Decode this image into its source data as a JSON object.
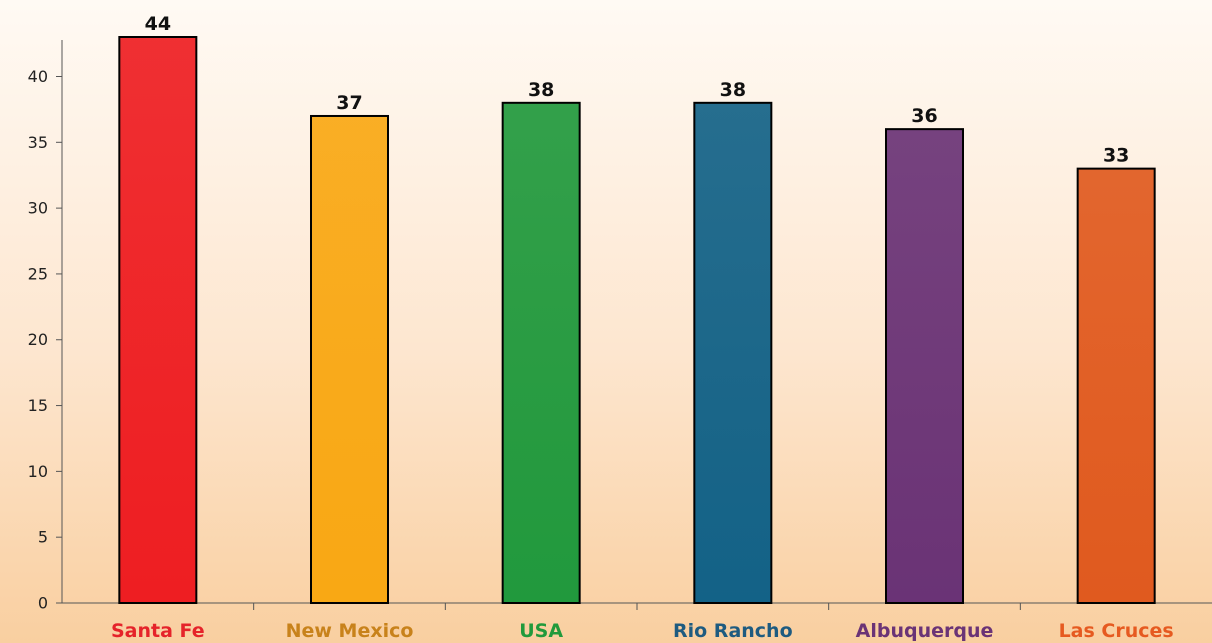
{
  "chart_data": {
    "type": "bar",
    "title": "",
    "xlabel": "",
    "ylabel": "",
    "categories": [
      "Santa Fe",
      "New Mexico",
      "USA",
      "Rio Rancho",
      "Albuquerque",
      "Las Cruces"
    ],
    "values": [
      44,
      37,
      38,
      38,
      36,
      33
    ],
    "data_labels": [
      "44",
      "37",
      "38",
      "38",
      "36",
      "33"
    ],
    "bar_colors": [
      "#ee1e22",
      "#f9a814",
      "#21993d",
      "#136287",
      "#6a3376",
      "#e05a1f"
    ],
    "category_label_colors": [
      "#e5232a",
      "#c8821b",
      "#219a3c",
      "#1e5b80",
      "#6a3376",
      "#e65a20"
    ],
    "ylim": [
      0,
      43
    ],
    "yticks": [
      0,
      5,
      10,
      15,
      20,
      25,
      30,
      35,
      40
    ],
    "grid": false,
    "legend": "none"
  }
}
